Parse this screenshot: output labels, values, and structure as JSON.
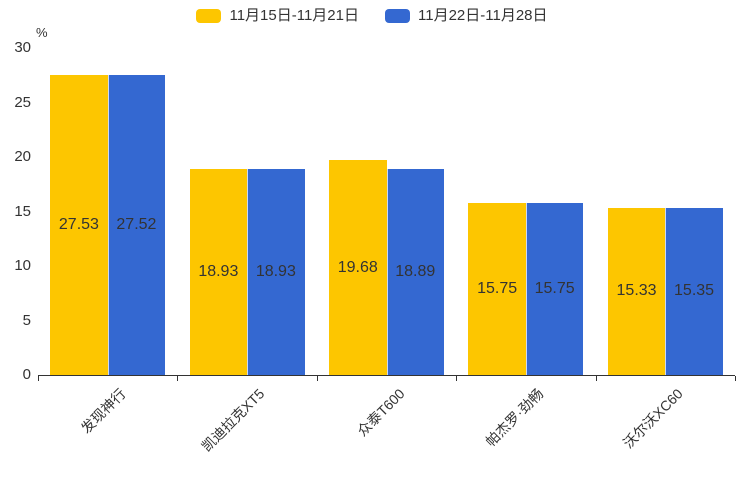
{
  "chart_data": {
    "type": "bar",
    "title": "",
    "categories": [
      "发现神行",
      "凯迪拉克XT5",
      "众泰T600",
      "帕杰罗·劲畅",
      "沃尔沃XC60"
    ],
    "series": [
      {
        "name": "11月15日-11月21日",
        "color": "#FDC600",
        "values": [
          27.53,
          18.93,
          19.68,
          15.75,
          15.33
        ]
      },
      {
        "name": "11月22日-11月28日",
        "color": "#3468D1",
        "values": [
          27.52,
          18.93,
          18.89,
          15.75,
          15.35
        ]
      }
    ],
    "xlabel": "",
    "ylabel": "%",
    "ylim": [
      0,
      30
    ],
    "yticks": [
      0,
      5,
      10,
      15,
      20,
      25,
      30
    ],
    "grid": false,
    "legend_position": "top-center",
    "value_labels": "inside-center",
    "x_label_rotation": 45
  },
  "colors": {
    "background": "#ffffff",
    "axis": "#333333",
    "text": "#333333",
    "series_1": "#FDC600",
    "series_2": "#3468D1"
  }
}
